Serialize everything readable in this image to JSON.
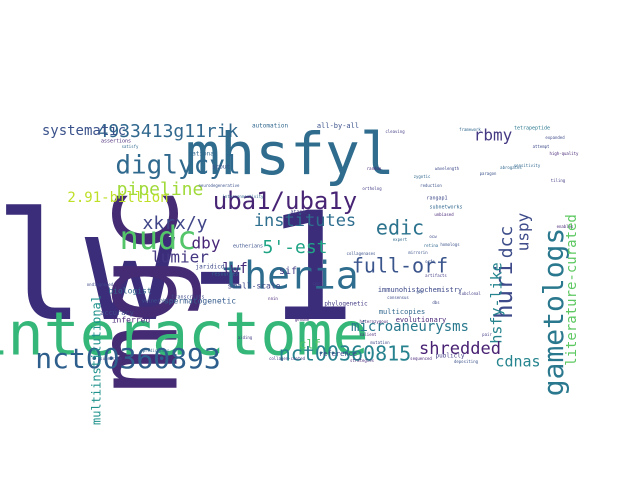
{
  "words": [
    {
      "text": "lw-1",
      "color": "#3b2d7a",
      "weight": 1.0
    },
    {
      "text": "mgc",
      "color": "#452b73",
      "weight": 0.92
    },
    {
      "text": "interactome",
      "color": "#35b779",
      "weight": 0.9
    },
    {
      "text": "mhsfyl",
      "color": "#2f6c8e",
      "weight": 0.62
    },
    {
      "text": "nct00360893",
      "color": "#2e5f8c",
      "weight": 0.45
    },
    {
      "text": "gametologs",
      "color": "#2a788e",
      "weight": 0.42
    },
    {
      "text": "theria",
      "color": "#2e6d8e",
      "weight": 0.4
    },
    {
      "text": "nct00360815",
      "color": "#26828e",
      "weight": 0.35
    },
    {
      "text": "nudc",
      "color": "#54c568",
      "weight": 0.33
    },
    {
      "text": "diglycyl",
      "color": "#30698e",
      "weight": 0.32
    },
    {
      "text": "uba1/uba1y",
      "color": "#482475",
      "weight": 0.3
    },
    {
      "text": "huri",
      "color": "#3e4a89",
      "weight": 0.28
    },
    {
      "text": "4933413g11rik",
      "color": "#31688e",
      "weight": 0.25
    },
    {
      "text": "rbmy",
      "color": "#443983",
      "weight": 0.24
    },
    {
      "text": "institutes",
      "color": "#2e6e8e",
      "weight": 0.24
    },
    {
      "text": "5'-est",
      "color": "#20a486",
      "weight": 0.23
    },
    {
      "text": "full-orf",
      "color": "#3a548c",
      "weight": 0.23
    },
    {
      "text": "pipeline",
      "color": "#a0da39",
      "weight": 0.22
    },
    {
      "text": "xkrx/y",
      "color": "#404688",
      "weight": 0.22
    },
    {
      "text": "edic",
      "color": "#2c738e",
      "weight": 0.22
    },
    {
      "text": "hsfy-like",
      "color": "#25848e",
      "weight": 0.21
    },
    {
      "text": "dcc",
      "color": "#3d4e8a",
      "weight": 0.21
    },
    {
      "text": "uspy",
      "color": "#3e4c8a",
      "weight": 0.21
    },
    {
      "text": "shredded",
      "color": "#482173",
      "weight": 0.2
    },
    {
      "text": "cdnas",
      "color": "#25848e",
      "weight": 0.2
    },
    {
      "text": "lumier",
      "color": "#453882",
      "weight": 0.2
    },
    {
      "text": "dby",
      "color": "#482677",
      "weight": 0.2
    },
    {
      "text": "lwf",
      "color": "#472c7a",
      "weight": 0.19
    },
    {
      "text": "systematic",
      "color": "#3b528b",
      "weight": 0.18
    },
    {
      "text": "2.91-billion",
      "color": "#bddf26",
      "weight": 0.18
    },
    {
      "text": "literature-curated",
      "color": "#5ec962",
      "weight": 0.18
    },
    {
      "text": "microaneurysms",
      "color": "#29798e",
      "weight": 0.17
    },
    {
      "text": "multiinstitutional",
      "color": "#20928c",
      "weight": 0.16
    },
    {
      "text": "clf",
      "color": "#52c569",
      "weight": 0.15
    },
    {
      "text": "sif",
      "color": "#433e85",
      "weight": 0.13
    },
    {
      "text": "small-scale",
      "color": "#3f4889",
      "weight": 0.11
    },
    {
      "text": "spermatogenetic",
      "color": "#365c8d",
      "weight": 0.1
    },
    {
      "text": "inferred",
      "color": "#482878",
      "weight": 0.1
    },
    {
      "text": "biologist",
      "color": "#31688e",
      "weight": 0.1
    },
    {
      "text": "accuracy",
      "color": "#3e4989",
      "weight": 0.1
    },
    {
      "text": "immunohistochemistry",
      "color": "#3e4a89",
      "weight": 0.1
    },
    {
      "text": "multicopies",
      "color": "#31688e",
      "weight": 0.1
    },
    {
      "text": "evolutionary",
      "color": "#482576",
      "weight": 0.1
    },
    {
      "text": "all-by-all",
      "color": "#3b528b",
      "weight": 0.09
    },
    {
      "text": "automation",
      "color": "#31688e",
      "weight": 0.09
    },
    {
      "text": "reference",
      "color": "#3e4a89",
      "weight": 0.09
    },
    {
      "text": "publicly",
      "color": "#433e85",
      "weight": 0.09
    },
    {
      "text": "scout",
      "color": "#3b528b",
      "weight": 0.09
    },
    {
      "text": "national",
      "color": "#31688e",
      "weight": 0.09
    },
    {
      "text": "jaridicd",
      "color": "#3e4989",
      "weight": 0.09
    },
    {
      "text": "phylogenetic",
      "color": "#433e85",
      "weight": 0.09
    },
    {
      "text": "assertions",
      "color": "#482878",
      "weight": 0.08
    },
    {
      "text": "tetrapeptide",
      "color": "#2a788e",
      "weight": 0.08
    },
    {
      "text": "subnetworks",
      "color": "#31688e",
      "weight": 0.08
    },
    {
      "text": "rangap1",
      "color": "#3e4989",
      "weight": 0.08
    },
    {
      "text": "atanl",
      "color": "#433e85",
      "weight": 0.08
    },
    {
      "text": "eutherians",
      "color": "#3b528b",
      "weight": 0.08
    },
    {
      "text": "resources",
      "color": "#31688e",
      "weight": 0.08
    },
    {
      "text": "transcripts",
      "color": "#3e4a89",
      "weight": 0.08
    },
    {
      "text": "vulnerable",
      "color": "#3b528b",
      "weight": 0.08
    },
    {
      "text": "sequenced",
      "color": "#482878",
      "weight": 0.08
    },
    {
      "text": "predictions",
      "color": "#31688e",
      "weight": 0.08
    },
    {
      "text": "substrate",
      "color": "#3e4a89",
      "weight": 0.08
    },
    {
      "text": "collagen-coated",
      "color": "#433e85",
      "weight": 0.08
    },
    {
      "text": "strategies",
      "color": "#482878",
      "weight": 0.08
    },
    {
      "text": "depositing",
      "color": "#3b528b",
      "weight": 0.08
    },
    {
      "text": "satisfy",
      "color": "#31688e",
      "weight": 0.07
    },
    {
      "text": "ondiagnosed",
      "color": "#3e4a89",
      "weight": 0.07
    },
    {
      "text": "cyp",
      "color": "#433e85",
      "weight": 0.07
    },
    {
      "text": "nnin",
      "color": "#482878",
      "weight": 0.07
    },
    {
      "text": "neurodegenerative",
      "color": "#3b528b",
      "weight": 0.07
    },
    {
      "text": "interconnectivity",
      "color": "#31688e",
      "weight": 0.07
    },
    {
      "text": "consensus",
      "color": "#3e4a89",
      "weight": 0.07
    },
    {
      "text": "subclonal",
      "color": "#433e85",
      "weight": 0.07
    },
    {
      "text": "unbiased",
      "color": "#482878",
      "weight": 0.07
    },
    {
      "text": "paragon",
      "color": "#3b528b",
      "weight": 0.07
    },
    {
      "text": "abrogates",
      "color": "#31688e",
      "weight": 0.07
    },
    {
      "text": "attempt",
      "color": "#3e4a89",
      "weight": 0.07
    },
    {
      "text": "tiling",
      "color": "#433e85",
      "weight": 0.07
    },
    {
      "text": "enables",
      "color": "#482878",
      "weight": 0.07
    },
    {
      "text": "reduction",
      "color": "#3b528b",
      "weight": 0.07
    },
    {
      "text": "zygotic",
      "color": "#31688e",
      "weight": 0.07
    },
    {
      "text": "ocw",
      "color": "#3e4a89",
      "weight": 0.07
    },
    {
      "text": "artifacts",
      "color": "#433e85",
      "weight": 0.07
    },
    {
      "text": "genome",
      "color": "#482878",
      "weight": 0.07
    },
    {
      "text": "collagenases",
      "color": "#3b528b",
      "weight": 0.07
    },
    {
      "text": "framework",
      "color": "#31688e",
      "weight": 0.07
    },
    {
      "text": "expanded",
      "color": "#3e4a89",
      "weight": 0.07
    },
    {
      "text": "cleaving",
      "color": "#433e85",
      "weight": 0.07
    },
    {
      "text": "high-quality",
      "color": "#482878",
      "weight": 0.07
    },
    {
      "text": "mirrorin",
      "color": "#3b528b",
      "weight": 0.07
    },
    {
      "text": "retina",
      "color": "#31688e",
      "weight": 0.07
    },
    {
      "text": "mutation",
      "color": "#3e4a89",
      "weight": 0.07
    },
    {
      "text": "aiding",
      "color": "#433e85",
      "weight": 0.07
    },
    {
      "text": "heterozygous",
      "color": "#482878",
      "weight": 0.07
    },
    {
      "text": "homologs",
      "color": "#3b528b",
      "weight": 0.07
    },
    {
      "text": "sensitivity",
      "color": "#31688e",
      "weight": 0.07
    },
    {
      "text": "wavelength",
      "color": "#3e4a89",
      "weight": 0.07
    },
    {
      "text": "ortholog",
      "color": "#433e85",
      "weight": 0.07
    },
    {
      "text": "salient",
      "color": "#482878",
      "weight": 0.07
    },
    {
      "text": "gbp",
      "color": "#3b528b",
      "weight": 0.07
    },
    {
      "text": "expert",
      "color": "#31688e",
      "weight": 0.07
    },
    {
      "text": "dbs",
      "color": "#3e4a89",
      "weight": 0.07
    },
    {
      "text": "pair",
      "color": "#433e85",
      "weight": 0.07
    },
    {
      "text": "random",
      "color": "#482878",
      "weight": 0.07
    },
    {
      "text": "orfs",
      "color": "#3b528b",
      "weight": 0.07
    }
  ]
}
